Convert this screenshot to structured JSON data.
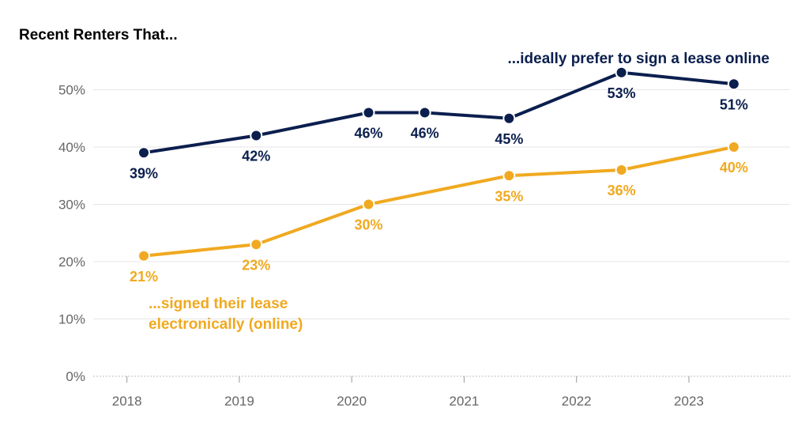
{
  "chart_data": {
    "type": "line",
    "title": "Recent Renters That...",
    "xlabel": "",
    "ylabel": "",
    "x_ticks": [
      "2018",
      "2019",
      "2020",
      "2021",
      "2022",
      "2023"
    ],
    "y_ticks": [
      "0%",
      "10%",
      "20%",
      "30%",
      "40%",
      "50%"
    ],
    "xlim": [
      2017.7,
      2023.9
    ],
    "ylim": [
      0,
      56
    ],
    "grid": true,
    "series": [
      {
        "name": "...ideally prefer to sign a lease online",
        "color": "#0b1f4e",
        "x": [
          2018.15,
          2019.15,
          2020.15,
          2020.65,
          2021.4,
          2022.4,
          2023.4
        ],
        "y": [
          39,
          42,
          46,
          46,
          45,
          53,
          51
        ],
        "labels": [
          "39%",
          "42%",
          "46%",
          "46%",
          "45%",
          "53%",
          "51%"
        ]
      },
      {
        "name": "...signed their lease electronically (online)",
        "color": "#f0a920",
        "x": [
          2018.15,
          2019.15,
          2020.15,
          2021.4,
          2022.4,
          2023.4
        ],
        "y": [
          21,
          23,
          30,
          35,
          36,
          40
        ],
        "labels": [
          "21%",
          "23%",
          "30%",
          "35%",
          "36%",
          "40%"
        ]
      }
    ],
    "annotations": [
      {
        "series": 0,
        "lines": [
          "...ideally prefer to sign a lease online"
        ]
      },
      {
        "series": 1,
        "lines": [
          "...signed their lease",
          "electronically (online)"
        ]
      }
    ]
  }
}
